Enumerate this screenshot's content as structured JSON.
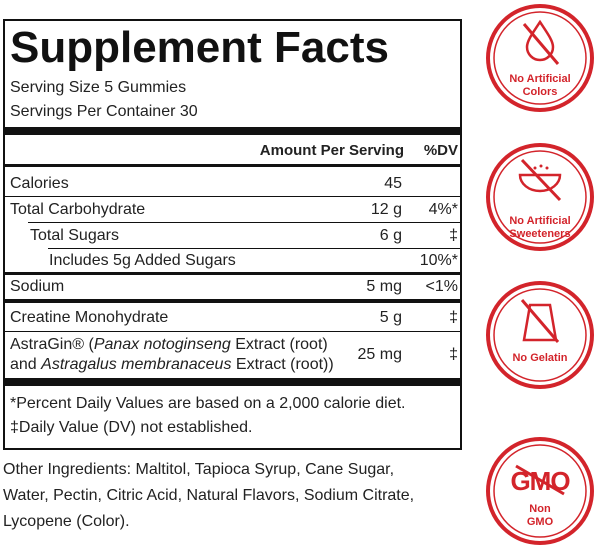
{
  "title": "Supplement Facts",
  "serving_size": "Serving Size 5 Gummies",
  "servings_per_container": "Servings Per Container 30",
  "header": {
    "amount": "Amount Per Serving",
    "dv": "%DV"
  },
  "rows": [
    {
      "name": "Calories",
      "amount": "45"
    },
    {
      "name": "Total Carbohydrate",
      "amount": "12 g",
      "dv": "4%*"
    },
    {
      "name": "Total Sugars",
      "amount": "6 g",
      "dv": "‡"
    },
    {
      "name": "Includes 5g Added Sugars",
      "dv": "10%*"
    },
    {
      "name": "Sodium",
      "amount": "5 mg",
      "dv": "<1%"
    },
    {
      "name": "Creatine Monohydrate",
      "amount": "5 g",
      "dv": "‡"
    },
    {
      "name_lines": [
        [
          {
            "text": "AstraGin® ("
          },
          {
            "text": "Panax notoginseng",
            "italic": true
          },
          {
            "text": " Extract (root)"
          }
        ],
        [
          {
            "text": "and "
          },
          {
            "text": "Astragalus membranaceus",
            "italic": true
          },
          {
            "text": " Extract (root))"
          }
        ]
      ],
      "amount": "25 mg",
      "dv": "‡"
    }
  ],
  "footnotes": [
    "*Percent Daily Values are based on a 2,000 calorie diet.",
    "‡Daily Value (DV) not established."
  ],
  "other_ingredients": [
    "Other Ingredients: Maltitol, Tapioca Syrup, Cane Sugar,",
    "Water, Pectin, Citric Acid, Natural Flavors, Sodium Citrate,",
    "Lycopene (Color)."
  ],
  "badges": [
    {
      "label": [
        "No Artificial",
        "Colors"
      ]
    },
    {
      "label": [
        "No Artificial",
        "Sweeteners"
      ]
    },
    {
      "label": [
        "No Gelatin"
      ]
    },
    {
      "mark": "GMO",
      "label": [
        "Non",
        "GMO"
      ]
    }
  ]
}
